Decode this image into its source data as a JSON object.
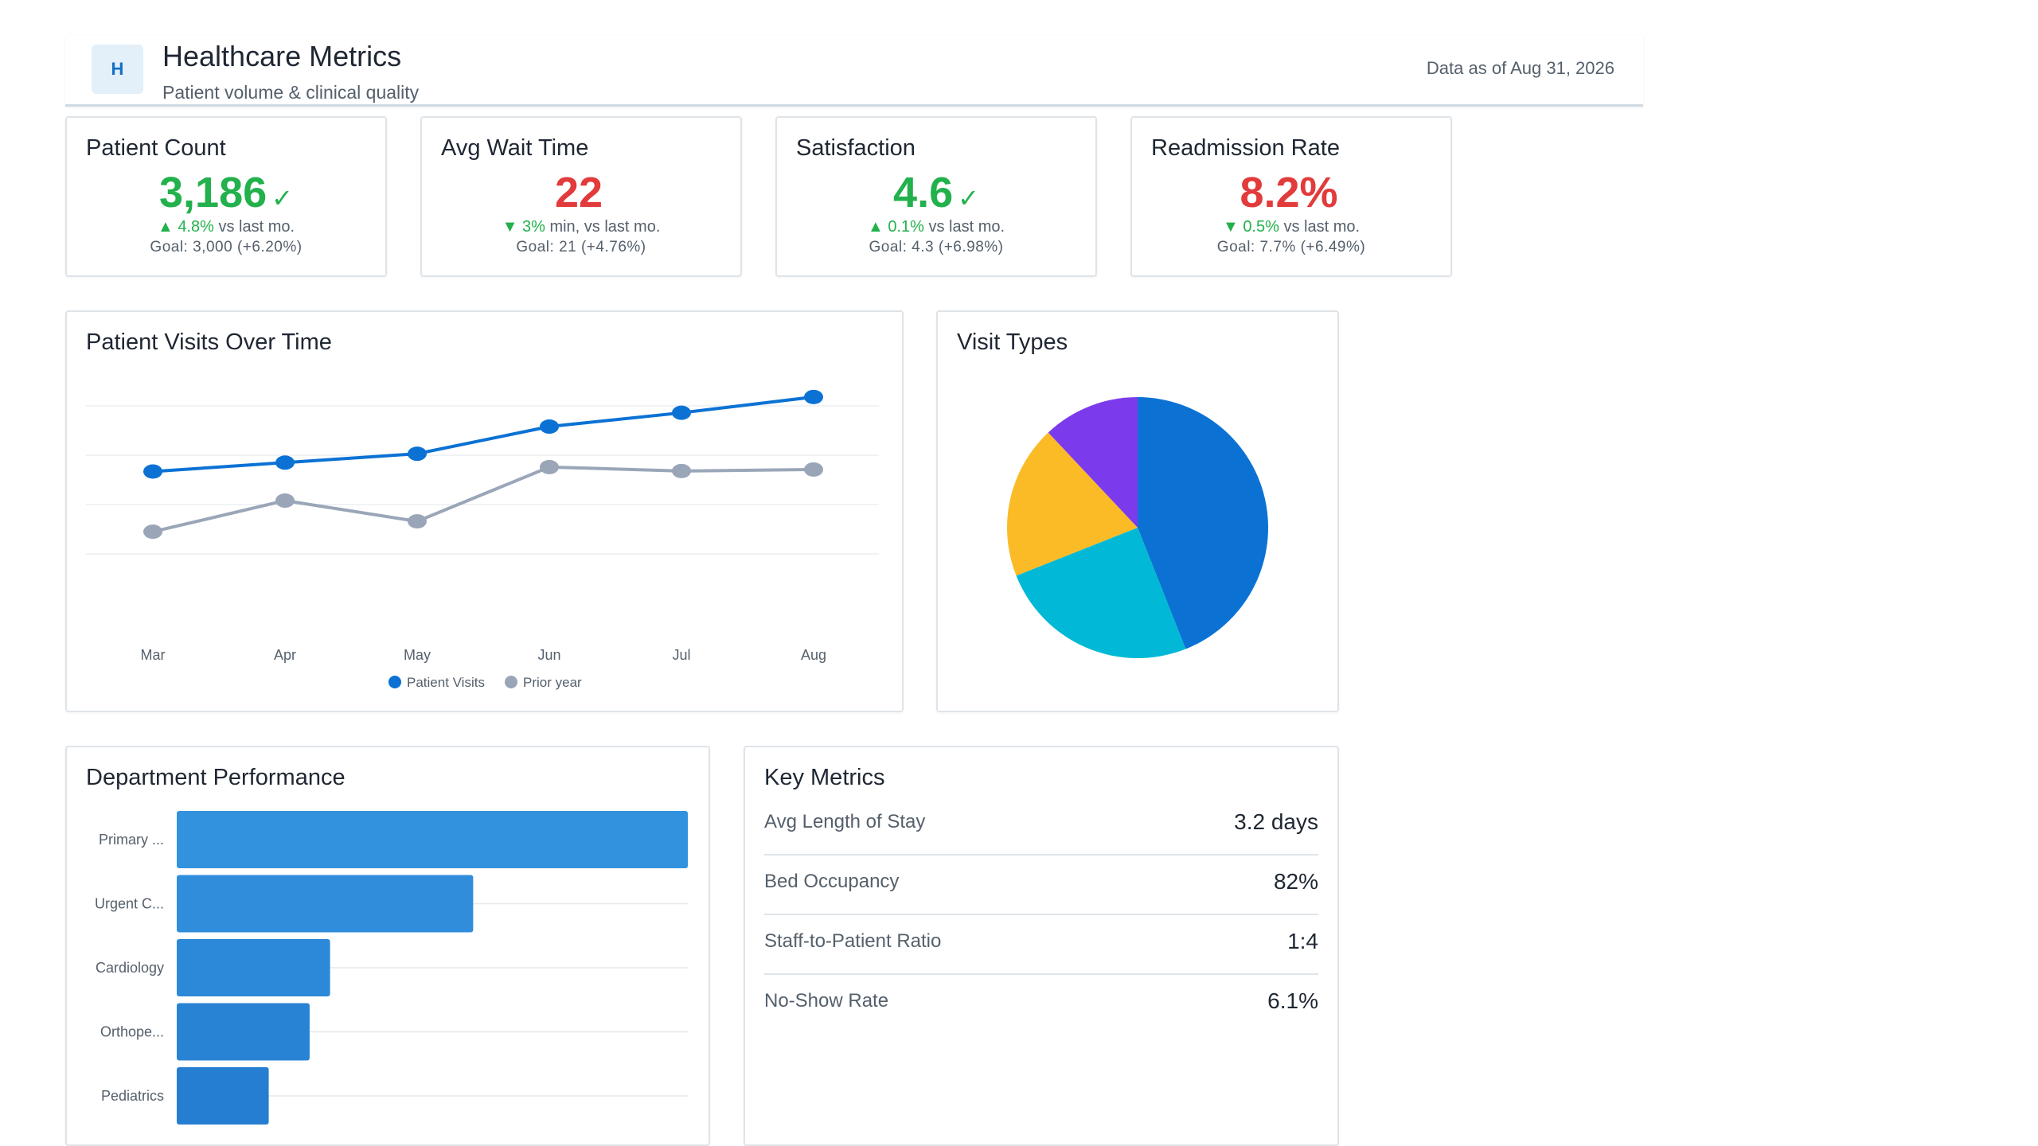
{
  "header": {
    "logo_letter": "H",
    "title": "Healthcare Metrics",
    "subtitle": "Patient volume & clinical quality",
    "data_as_of": "Data as of Aug 31, 2026"
  },
  "kpis": [
    {
      "title": "Patient Count",
      "value": "3,186",
      "value_color": "#22b14c",
      "check": "✓",
      "arrow": "▲",
      "delta": "4.8%",
      "delta_unit": "",
      "delta_suffix": "vs last mo.",
      "goal": "Goal: 3,000 (+6.20%)"
    },
    {
      "title": "Avg Wait Time",
      "value": "22",
      "value_color": "#e23b3b",
      "check": "",
      "arrow": "▼",
      "delta": "3%",
      "delta_unit": "min,",
      "delta_suffix": "vs last mo.",
      "goal": "Goal: 21 (+4.76%)"
    },
    {
      "title": "Satisfaction",
      "value": "4.6",
      "value_color": "#22b14c",
      "check": "✓",
      "arrow": "▲",
      "delta": "0.1%",
      "delta_unit": "",
      "delta_suffix": "vs last mo.",
      "goal": "Goal: 4.3 (+6.98%)"
    },
    {
      "title": "Readmission Rate",
      "value": "8.2%",
      "value_color": "#e23b3b",
      "check": "",
      "arrow": "▼",
      "delta": "0.5%",
      "delta_unit": "",
      "delta_suffix": "vs last mo.",
      "goal": "Goal: 7.7% (+6.49%)"
    }
  ],
  "line_panel": {
    "title": "Patient Visits Over Time"
  },
  "pie_panel": {
    "title": "Visit Types"
  },
  "bar_panel": {
    "title": "Department Performance"
  },
  "key_metrics": {
    "title": "Key Metrics",
    "rows": [
      {
        "label": "Avg Length of Stay",
        "value": "3.2 days"
      },
      {
        "label": "Bed Occupancy",
        "value": "82%"
      },
      {
        "label": "Staff-to-Patient Ratio",
        "value": "1:4"
      },
      {
        "label": "No-Show Rate",
        "value": "6.1%"
      }
    ]
  },
  "chart_data": [
    {
      "type": "line",
      "title": "Patient Visits Over Time",
      "categories": [
        "Mar",
        "Apr",
        "May",
        "Jun",
        "Jul",
        "Aug"
      ],
      "ylim": [
        0,
        4
      ],
      "grid": true,
      "legend": "bottom",
      "series": [
        {
          "name": "Patient Visits",
          "color": "#0b72d4",
          "values": [
            2.67,
            2.85,
            3.03,
            3.58,
            3.86,
            4.18
          ]
        },
        {
          "name": "Prior year",
          "color": "#9aa6b8",
          "values": [
            1.45,
            2.08,
            1.66,
            2.76,
            2.68,
            2.71
          ]
        }
      ]
    },
    {
      "type": "pie",
      "title": "Visit Types",
      "slices": [
        {
          "value": 44,
          "color": "#0b72d4"
        },
        {
          "value": 25,
          "color": "#01b9d6"
        },
        {
          "value": 19,
          "color": "#fbbb26"
        },
        {
          "value": 12,
          "color": "#7c3aed"
        }
      ]
    },
    {
      "type": "bar",
      "orientation": "horizontal",
      "title": "Department Performance",
      "categories": [
        "Primary ...",
        "Urgent C...",
        "Cardiology",
        "Orthope...",
        "Pediatrics"
      ],
      "values": [
        100,
        58,
        30,
        26,
        18
      ],
      "xlim": [
        0,
        100
      ],
      "colors": [
        "#3292de",
        "#2f8ddc",
        "#2c88d8",
        "#2983d5",
        "#257ed1"
      ]
    }
  ]
}
